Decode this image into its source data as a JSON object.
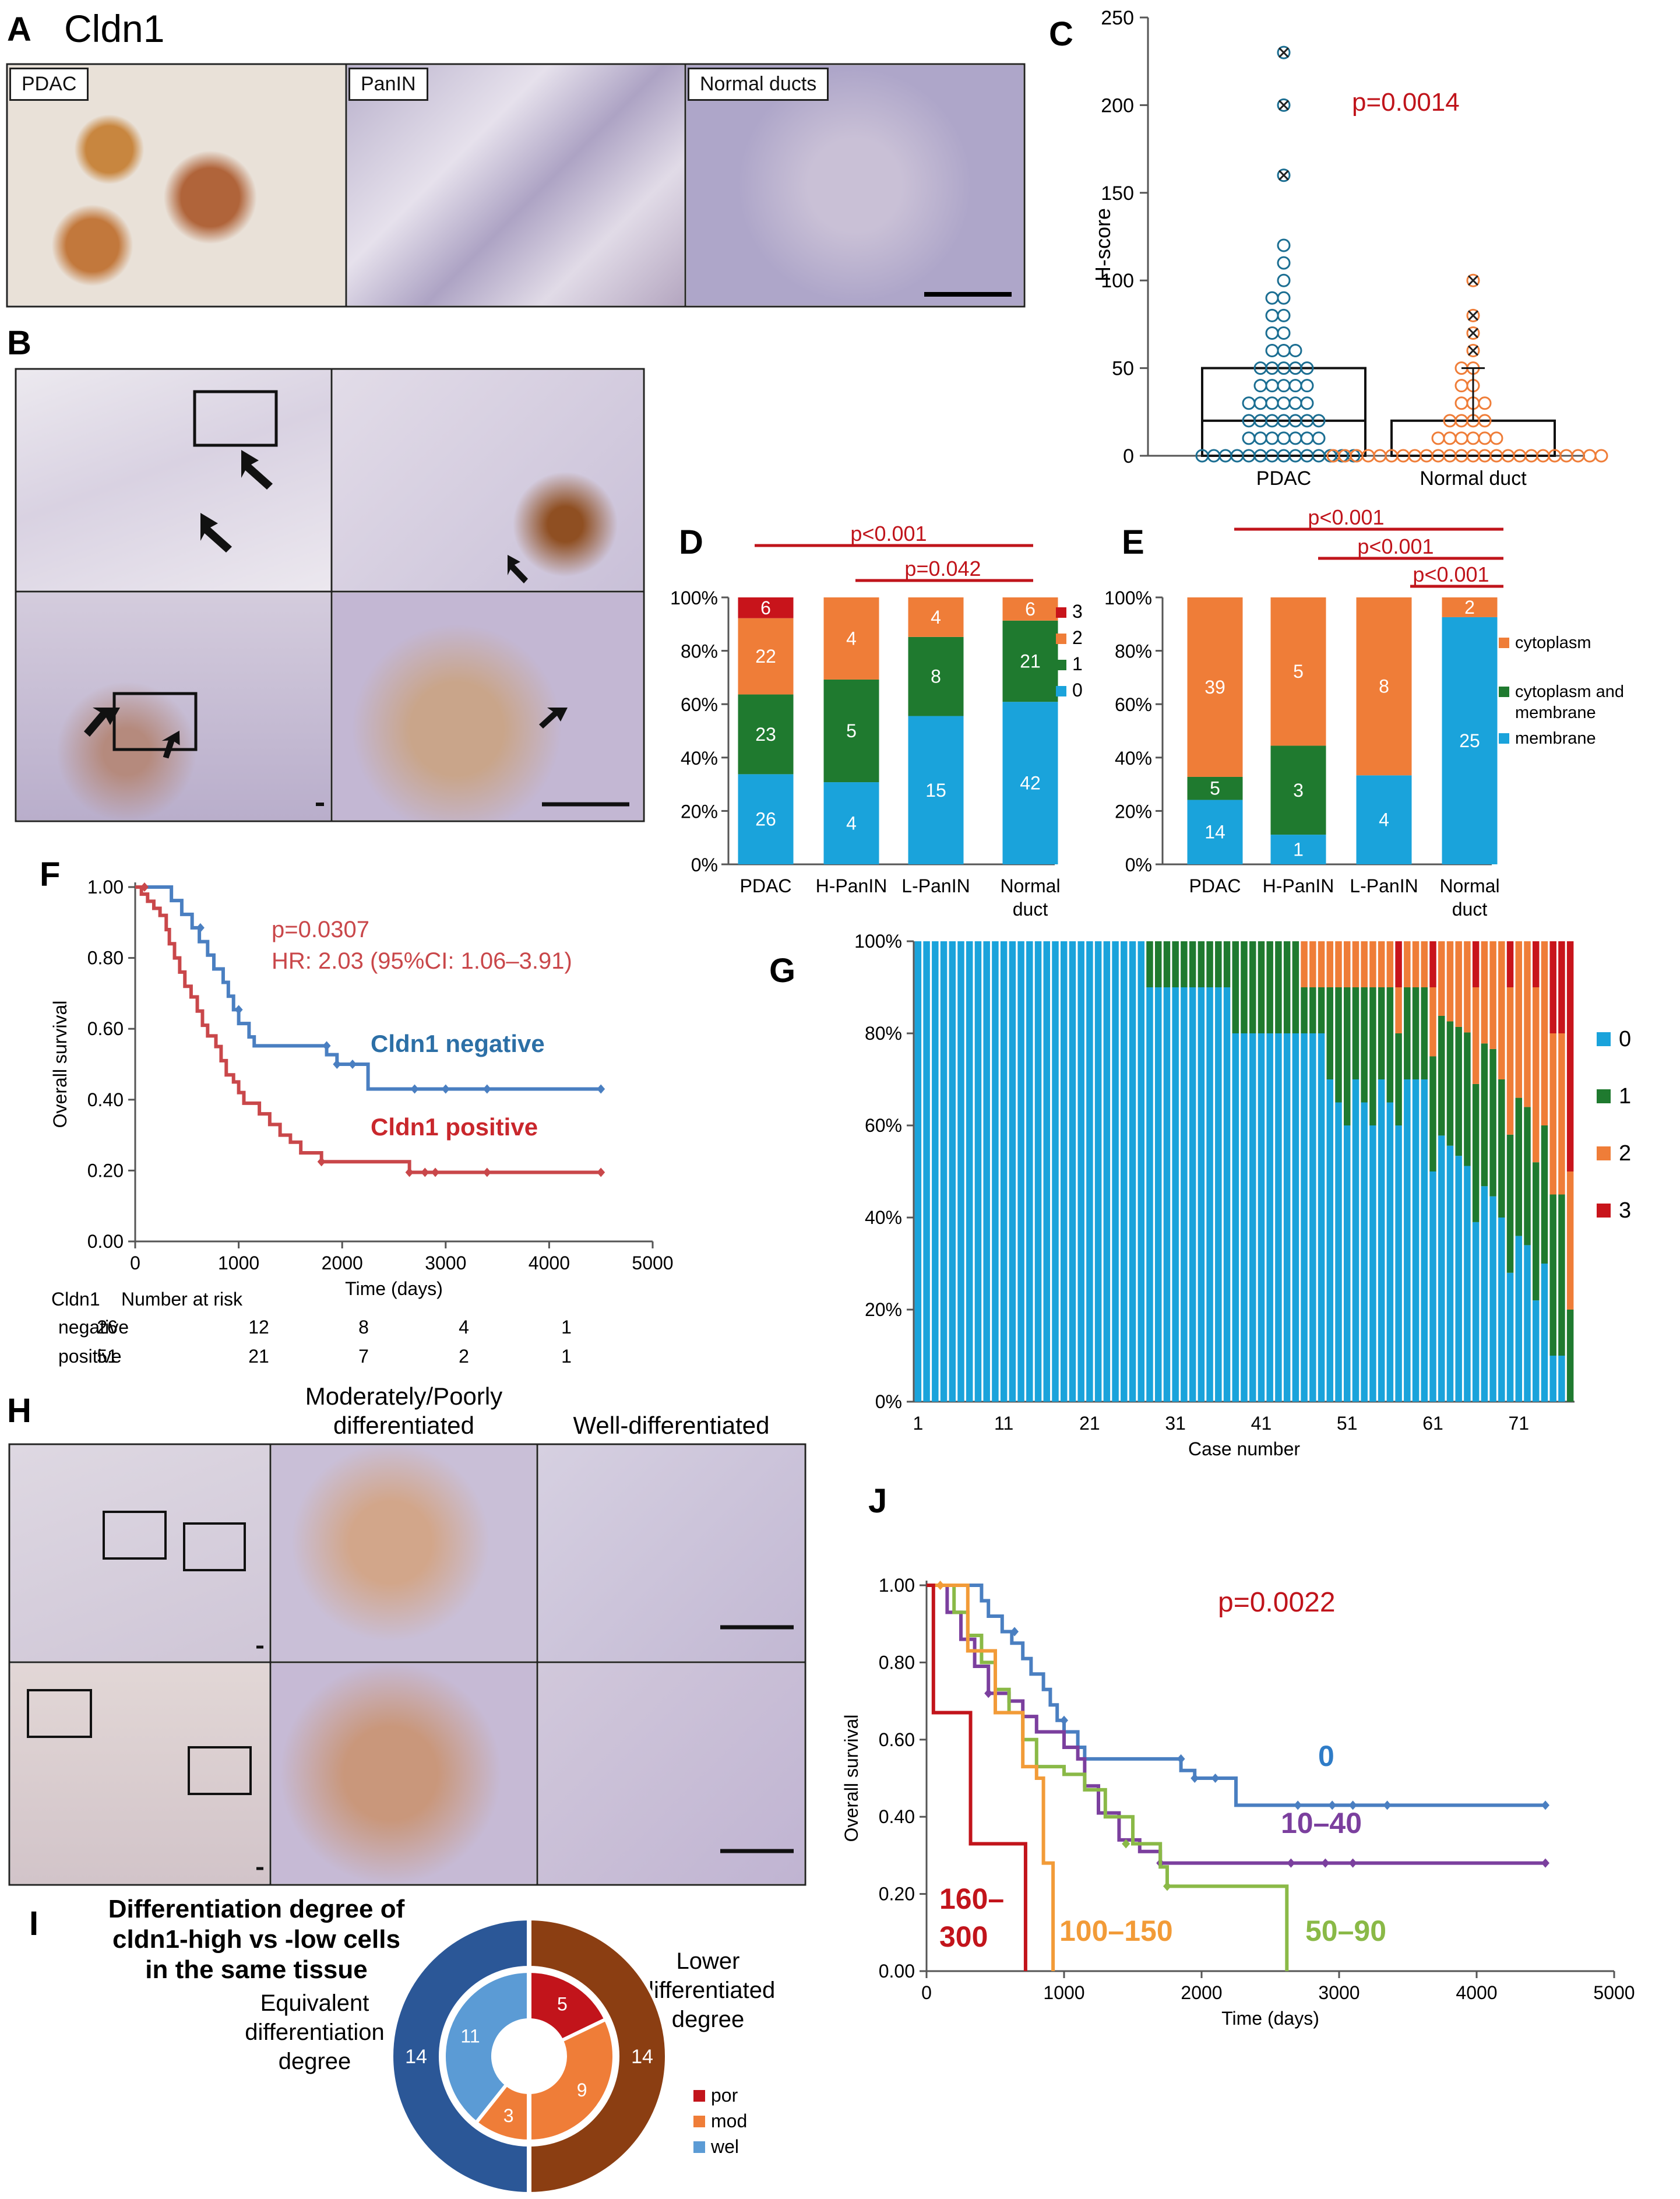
{
  "panels": {
    "A": {
      "letter": "A",
      "title": "Cldn1",
      "images": [
        "PDAC",
        "PanIN",
        "Normal ducts"
      ]
    },
    "B": {
      "letter": "B"
    },
    "C": {
      "letter": "C"
    },
    "D": {
      "letter": "D"
    },
    "E": {
      "letter": "E"
    },
    "F": {
      "letter": "F"
    },
    "G": {
      "letter": "G"
    },
    "H": {
      "letter": "H",
      "col1": [
        "Moderately/Poorly",
        "differentiated"
      ],
      "col2": "Well-differentiated"
    },
    "I": {
      "letter": "I"
    },
    "J": {
      "letter": "J"
    }
  },
  "colors": {
    "blue": "#1aa3db",
    "green": "#1f7a2f",
    "orange": "#ef7d38",
    "red": "#c8141b",
    "km_blue": "#4a7fc1",
    "km_red": "#c9474a",
    "purple": "#7b3f9e",
    "lime": "#8ab947",
    "km_orange": "#f29b38",
    "dkred": "#c2141b",
    "navy": "#2b5797",
    "brown": "#8b3e12",
    "ptext": "#c0141b"
  },
  "chart_data": [
    {
      "panel": "C",
      "type": "scatter",
      "ylabel": "H-score",
      "ylim": [
        0,
        250
      ],
      "yticks": [
        0,
        50,
        100,
        150,
        200,
        250
      ],
      "categories": [
        "PDAC",
        "Normal duct"
      ],
      "annotation": "p=0.0014",
      "series": [
        {
          "name": "PDAC",
          "box_median": 20,
          "box_q3": 50,
          "outliers": [
            230,
            200,
            160
          ],
          "points": [
            0,
            0,
            0,
            0,
            0,
            0,
            0,
            0,
            0,
            0,
            0,
            0,
            0,
            0,
            10,
            10,
            10,
            10,
            10,
            10,
            10,
            20,
            20,
            20,
            20,
            20,
            20,
            20,
            30,
            30,
            30,
            30,
            30,
            30,
            40,
            40,
            40,
            40,
            40,
            50,
            50,
            50,
            50,
            50,
            60,
            60,
            60,
            70,
            70,
            80,
            80,
            90,
            90,
            100,
            110,
            120
          ]
        },
        {
          "name": "Normal duct",
          "box_median": 0,
          "box_q3": 20,
          "outliers": [
            100,
            80,
            70,
            60
          ],
          "points": [
            0,
            0,
            0,
            0,
            0,
            0,
            0,
            0,
            0,
            0,
            0,
            0,
            0,
            0,
            0,
            0,
            0,
            0,
            0,
            0,
            0,
            0,
            0,
            0,
            10,
            10,
            10,
            10,
            10,
            10,
            20,
            20,
            20,
            20,
            30,
            30,
            30,
            40,
            40,
            50,
            50
          ]
        }
      ]
    },
    {
      "panel": "D",
      "type": "bar",
      "stacked": true,
      "percent": true,
      "categories": [
        "PDAC",
        "H-PanIN",
        "L-PanIN",
        "Normal duct"
      ],
      "yticks": [
        "0%",
        "20%",
        "40%",
        "60%",
        "80%",
        "100%"
      ],
      "series": [
        {
          "name": "0",
          "values": [
            26,
            4,
            15,
            42
          ]
        },
        {
          "name": "1",
          "values": [
            23,
            5,
            8,
            21
          ]
        },
        {
          "name": "2",
          "values": [
            22,
            4,
            4,
            6
          ]
        },
        {
          "name": "3",
          "values": [
            6,
            0,
            0,
            0
          ]
        }
      ],
      "legend": [
        "3",
        "2",
        "1",
        "0"
      ],
      "brackets": [
        "p<0.001",
        "p=0.042"
      ]
    },
    {
      "panel": "E",
      "type": "bar",
      "stacked": true,
      "percent": true,
      "categories": [
        "PDAC",
        "H-PanIN",
        "L-PanIN",
        "Normal duct"
      ],
      "yticks": [
        "0%",
        "20%",
        "40%",
        "60%",
        "80%",
        "100%"
      ],
      "series": [
        {
          "name": "membrane",
          "values": [
            14,
            1,
            4,
            25
          ]
        },
        {
          "name": "cytoplasm and membrane",
          "values": [
            5,
            3,
            0,
            0
          ]
        },
        {
          "name": "cytoplasm",
          "values": [
            39,
            5,
            8,
            2
          ]
        }
      ],
      "legend": [
        "cytoplasm",
        "cytoplasm and",
        "membrane",
        "membrane"
      ],
      "brackets": [
        "p<0.001",
        "p<0.001",
        "p<0.001"
      ]
    },
    {
      "panel": "F",
      "type": "line",
      "xlabel": "Time (days)",
      "ylabel": "Overall survival",
      "xlim": [
        0,
        5000
      ],
      "ylim": [
        0,
        1
      ],
      "xticks": [
        "0",
        "1000",
        "2000",
        "3000",
        "4000",
        "5000"
      ],
      "yticks": [
        "0.00",
        "0.20",
        "0.40",
        "0.60",
        "0.80",
        "1.00"
      ],
      "annotation": [
        "p=0.0307",
        "HR: 2.03 (95%CI: 1.06–3.91)"
      ],
      "series": [
        {
          "name": "Cldn1 negative",
          "steps": [
            [
              0,
              1
            ],
            [
              300,
              1
            ],
            [
              350,
              0.962
            ],
            [
              450,
              0.923
            ],
            [
              550,
              0.885
            ],
            [
              620,
              0.846
            ],
            [
              700,
              0.808
            ],
            [
              760,
              0.769
            ],
            [
              850,
              0.731
            ],
            [
              900,
              0.692
            ],
            [
              950,
              0.654
            ],
            [
              1000,
              0.615
            ],
            [
              1100,
              0.577
            ],
            [
              1150,
              0.552
            ],
            [
              1800,
              0.552
            ],
            [
              1850,
              0.527
            ],
            [
              1950,
              0.5
            ],
            [
              2200,
              0.5
            ],
            [
              2250,
              0.43
            ],
            [
              4500,
              0.43
            ]
          ],
          "censors": [
            [
              630,
              0.885
            ],
            [
              1000,
              0.654
            ],
            [
              1850,
              0.552
            ],
            [
              1950,
              0.5
            ],
            [
              2100,
              0.5
            ],
            [
              2700,
              0.43
            ],
            [
              3000,
              0.43
            ],
            [
              3400,
              0.43
            ],
            [
              4500,
              0.43
            ]
          ]
        },
        {
          "name": "Cldn1 positive",
          "steps": [
            [
              0,
              1
            ],
            [
              60,
              0.98
            ],
            [
              120,
              0.96
            ],
            [
              180,
              0.94
            ],
            [
              240,
              0.92
            ],
            [
              300,
              0.88
            ],
            [
              330,
              0.84
            ],
            [
              380,
              0.8
            ],
            [
              430,
              0.76
            ],
            [
              480,
              0.72
            ],
            [
              540,
              0.69
            ],
            [
              600,
              0.65
            ],
            [
              650,
              0.61
            ],
            [
              700,
              0.58
            ],
            [
              780,
              0.55
            ],
            [
              830,
              0.51
            ],
            [
              880,
              0.47
            ],
            [
              950,
              0.45
            ],
            [
              1000,
              0.42
            ],
            [
              1050,
              0.39
            ],
            [
              1200,
              0.36
            ],
            [
              1300,
              0.33
            ],
            [
              1400,
              0.3
            ],
            [
              1500,
              0.28
            ],
            [
              1600,
              0.25
            ],
            [
              1800,
              0.225
            ],
            [
              2600,
              0.225
            ],
            [
              2650,
              0.195
            ],
            [
              4500,
              0.195
            ]
          ],
          "censors": [
            [
              90,
              1
            ],
            [
              1800,
              0.225
            ],
            [
              2650,
              0.195
            ],
            [
              2800,
              0.195
            ],
            [
              2900,
              0.195
            ],
            [
              3400,
              0.195
            ],
            [
              4500,
              0.195
            ]
          ]
        }
      ],
      "risk_table": {
        "header": [
          "Cldn1",
          "Number at risk"
        ],
        "rows": [
          {
            "label": "negative",
            "values": [
              "26",
              "12",
              "8",
              "4",
              "1"
            ]
          },
          {
            "label": "positive",
            "values": [
              "51",
              "21",
              "7",
              "2",
              "1"
            ]
          }
        ]
      }
    },
    {
      "panel": "G",
      "type": "bar",
      "stacked": true,
      "percent": true,
      "xlabel": "Case number",
      "xticks": [
        "1",
        "11",
        "21",
        "31",
        "41",
        "51",
        "61",
        "71"
      ],
      "yticks": [
        "0%",
        "20%",
        "40%",
        "60%",
        "80%",
        "100%"
      ],
      "legend": [
        "0",
        "1",
        "2",
        "3"
      ],
      "cases": 77,
      "description": "Per-case fractions of scores 0/1/2/3; cases 1–27 all score 0, increasing heterogeneity thereafter."
    },
    {
      "panel": "I",
      "type": "pie",
      "donut": true,
      "title": [
        "Differentiation degree of",
        "cldn1-high vs -low cells",
        "in the same tissue"
      ],
      "outer": [
        {
          "name": "Equivalent differentiation degree",
          "value": 14
        },
        {
          "name": "Lower differentiated degree",
          "value": 14
        }
      ],
      "outer_labels": {
        "left": [
          "Equivalent",
          "differentiation",
          "degree"
        ],
        "right": [
          "Lower",
          "differentiated",
          "degree"
        ]
      },
      "inner": [
        {
          "name": "por",
          "value": 5
        },
        {
          "name": "mod",
          "value": 9
        },
        {
          "name": "mod",
          "value": 3
        },
        {
          "name": "wel",
          "value": 11
        }
      ],
      "legend": [
        "por",
        "mod",
        "wel"
      ]
    },
    {
      "panel": "J",
      "type": "line",
      "xlabel": "Time (days)",
      "ylabel": "Overall survival",
      "xlim": [
        0,
        5000
      ],
      "ylim": [
        0,
        1
      ],
      "xticks": [
        "0",
        "1000",
        "2000",
        "3000",
        "4000",
        "5000"
      ],
      "yticks": [
        "0.00",
        "0.20",
        "0.40",
        "0.60",
        "0.80",
        "1.00"
      ],
      "annotation": "p=0.0022",
      "series": [
        {
          "name": "0",
          "steps": [
            [
              0,
              1
            ],
            [
              350,
              1
            ],
            [
              400,
              0.96
            ],
            [
              450,
              0.92
            ],
            [
              550,
              0.88
            ],
            [
              620,
              0.85
            ],
            [
              700,
              0.81
            ],
            [
              760,
              0.77
            ],
            [
              850,
              0.73
            ],
            [
              900,
              0.69
            ],
            [
              950,
              0.65
            ],
            [
              1000,
              0.62
            ],
            [
              1100,
              0.58
            ],
            [
              1150,
              0.55
            ],
            [
              1800,
              0.55
            ],
            [
              1850,
              0.52
            ],
            [
              1950,
              0.5
            ],
            [
              2200,
              0.5
            ],
            [
              2250,
              0.43
            ],
            [
              4500,
              0.43
            ]
          ],
          "censors": [
            [
              640,
              0.88
            ],
            [
              1000,
              0.65
            ],
            [
              1850,
              0.55
            ],
            [
              1950,
              0.5
            ],
            [
              2100,
              0.5
            ],
            [
              2700,
              0.43
            ],
            [
              2950,
              0.43
            ],
            [
              3100,
              0.43
            ],
            [
              3350,
              0.43
            ],
            [
              4500,
              0.43
            ]
          ]
        },
        {
          "name": "10–40",
          "steps": [
            [
              0,
              1
            ],
            [
              150,
              0.93
            ],
            [
              250,
              0.86
            ],
            [
              350,
              0.79
            ],
            [
              450,
              0.72
            ],
            [
              600,
              0.7
            ],
            [
              700,
              0.66
            ],
            [
              800,
              0.62
            ],
            [
              1000,
              0.58
            ],
            [
              1100,
              0.55
            ],
            [
              1150,
              0.48
            ],
            [
              1250,
              0.41
            ],
            [
              1400,
              0.34
            ],
            [
              1550,
              0.31
            ],
            [
              1700,
              0.28
            ],
            [
              4500,
              0.28
            ]
          ],
          "censors": [
            [
              450,
              0.72
            ],
            [
              1700,
              0.28
            ],
            [
              2650,
              0.28
            ],
            [
              2900,
              0.28
            ],
            [
              3100,
              0.28
            ],
            [
              4500,
              0.28
            ]
          ]
        },
        {
          "name": "50–90",
          "steps": [
            [
              0,
              1
            ],
            [
              200,
              0.93
            ],
            [
              300,
              0.87
            ],
            [
              400,
              0.8
            ],
            [
              500,
              0.73
            ],
            [
              600,
              0.67
            ],
            [
              700,
              0.6
            ],
            [
              800,
              0.53
            ],
            [
              1000,
              0.51
            ],
            [
              1150,
              0.47
            ],
            [
              1300,
              0.4
            ],
            [
              1500,
              0.33
            ],
            [
              1700,
              0.27
            ],
            [
              1750,
              0.22
            ],
            [
              2600,
              0.22
            ],
            [
              2620,
              0
            ],
            [
              2620,
              0
            ]
          ],
          "censors": [
            [
              1450,
              0.33
            ],
            [
              1750,
              0.22
            ]
          ]
        },
        {
          "name": "100–150",
          "steps": [
            [
              0,
              1
            ],
            [
              100,
              1
            ],
            [
              300,
              0.83
            ],
            [
              500,
              0.67
            ],
            [
              700,
              0.53
            ],
            [
              800,
              0.5
            ],
            [
              850,
              0.28
            ],
            [
              920,
              0
            ],
            [
              920,
              0
            ]
          ],
          "censors": [
            [
              100,
              1
            ]
          ]
        },
        {
          "name": "160–300",
          "steps": [
            [
              0,
              1
            ],
            [
              50,
              0.67
            ],
            [
              300,
              0.67
            ],
            [
              320,
              0.33
            ],
            [
              720,
              0.33
            ],
            [
              720,
              0
            ]
          ],
          "censors": []
        }
      ],
      "curve_labels": [
        [
          "0"
        ],
        [
          "10–40"
        ],
        [
          "50–90"
        ],
        [
          "100–150"
        ],
        [
          "160–",
          "300"
        ]
      ]
    }
  ]
}
